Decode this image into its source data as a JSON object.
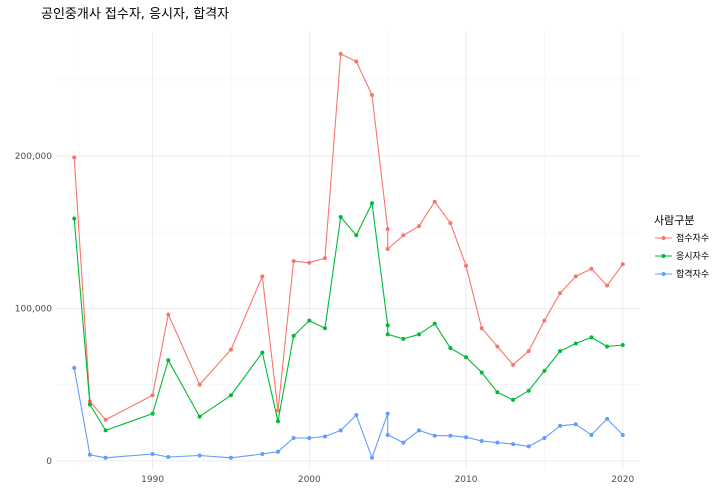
{
  "chart_data": {
    "type": "line",
    "title": "공인중개사 접수자, 응시자, 합격자",
    "xlabel": "",
    "ylabel": "",
    "xlim": [
      1983.9,
      2021.1
    ],
    "ylim": [
      -6000,
      282000
    ],
    "x_ticks": [
      1990,
      2000,
      2010,
      2020
    ],
    "y_ticks": [
      0,
      100000,
      200000
    ],
    "y_tick_labels": [
      "0",
      "100,000",
      "200,000"
    ],
    "grid": true,
    "legend": {
      "title": "사람구분",
      "position": "right"
    },
    "series": [
      {
        "name": "접수자수",
        "color": "#F8766D",
        "x": [
          1985,
          1986,
          1987,
          1990,
          1991,
          1993,
          1995,
          1997,
          1998,
          1999,
          2000,
          2001,
          2002,
          2003,
          2004,
          2005,
          2005,
          2006,
          2007,
          2008,
          2009,
          2010,
          2011,
          2012,
          2013,
          2014,
          2015,
          2016,
          2017,
          2018,
          2019,
          2020
        ],
        "values": [
          199000,
          39000,
          27000,
          43000,
          96000,
          50000,
          73000,
          121000,
          33000,
          131000,
          130000,
          133000,
          267000,
          262000,
          240000,
          152000,
          139000,
          148000,
          154000,
          170000,
          156000,
          128000,
          87000,
          75000,
          63000,
          72000,
          92000,
          110000,
          121000,
          126000,
          115000,
          129000
        ]
      },
      {
        "name": "응시자수",
        "color": "#00BA38",
        "x": [
          1985,
          1986,
          1987,
          1990,
          1991,
          1993,
          1995,
          1997,
          1998,
          1999,
          2000,
          2001,
          2002,
          2003,
          2004,
          2005,
          2005,
          2006,
          2007,
          2008,
          2009,
          2010,
          2011,
          2012,
          2013,
          2014,
          2015,
          2016,
          2017,
          2018,
          2019,
          2020
        ],
        "values": [
          159000,
          37000,
          20000,
          31000,
          66000,
          29000,
          43000,
          71000,
          26000,
          82000,
          92000,
          87000,
          160000,
          148000,
          169000,
          89000,
          83000,
          80000,
          83000,
          90000,
          74000,
          68000,
          58000,
          45000,
          40000,
          46000,
          59000,
          72000,
          77000,
          81000,
          75000,
          76000
        ]
      },
      {
        "name": "합격자수",
        "color": "#619CFF",
        "x": [
          1985,
          1986,
          1987,
          1990,
          1991,
          1993,
          1995,
          1997,
          1998,
          1999,
          2000,
          2001,
          2002,
          2003,
          2004,
          2005,
          2005,
          2006,
          2007,
          2008,
          2009,
          2010,
          2011,
          2012,
          2013,
          2014,
          2015,
          2016,
          2017,
          2018,
          2019,
          2020
        ],
        "values": [
          61000,
          4000,
          2000,
          4500,
          2500,
          3500,
          2000,
          4500,
          6000,
          15000,
          15000,
          16000,
          20000,
          30000,
          2000,
          31000,
          17000,
          12000,
          20000,
          16500,
          16500,
          15500,
          13000,
          12000,
          11000,
          9500,
          15000,
          23000,
          24000,
          17000,
          27500,
          17000
        ]
      }
    ]
  }
}
